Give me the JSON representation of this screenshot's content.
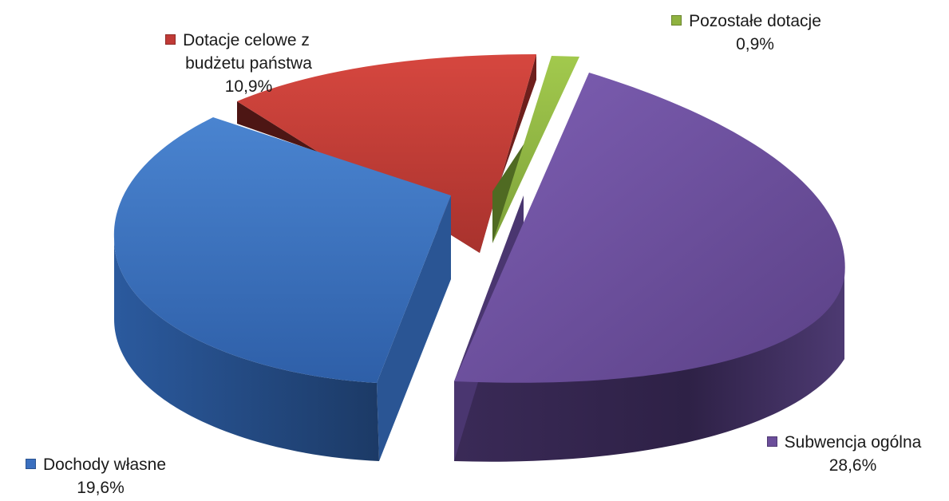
{
  "chart_data": {
    "type": "pie",
    "style": "3d-exploded",
    "title": "",
    "slices": [
      {
        "label": "Dochody własne",
        "value_label": "19,6%",
        "value": 19.6,
        "color": "#3a6fbf"
      },
      {
        "label": "Dotacje celowe z budżetu państwa",
        "label_lines": [
          "Dotacje celowe z",
          "budżetu państwa"
        ],
        "value_label": "10,9%",
        "value": 10.9,
        "color": "#c03a36"
      },
      {
        "label": "Pozostałe dotacje",
        "value_label": "0,9%",
        "value": 0.9,
        "color": "#8fb23f"
      },
      {
        "label": "Subwencja ogólna",
        "value_label": "28,6%",
        "value": 28.6,
        "color": "#6b4e9a"
      }
    ]
  }
}
